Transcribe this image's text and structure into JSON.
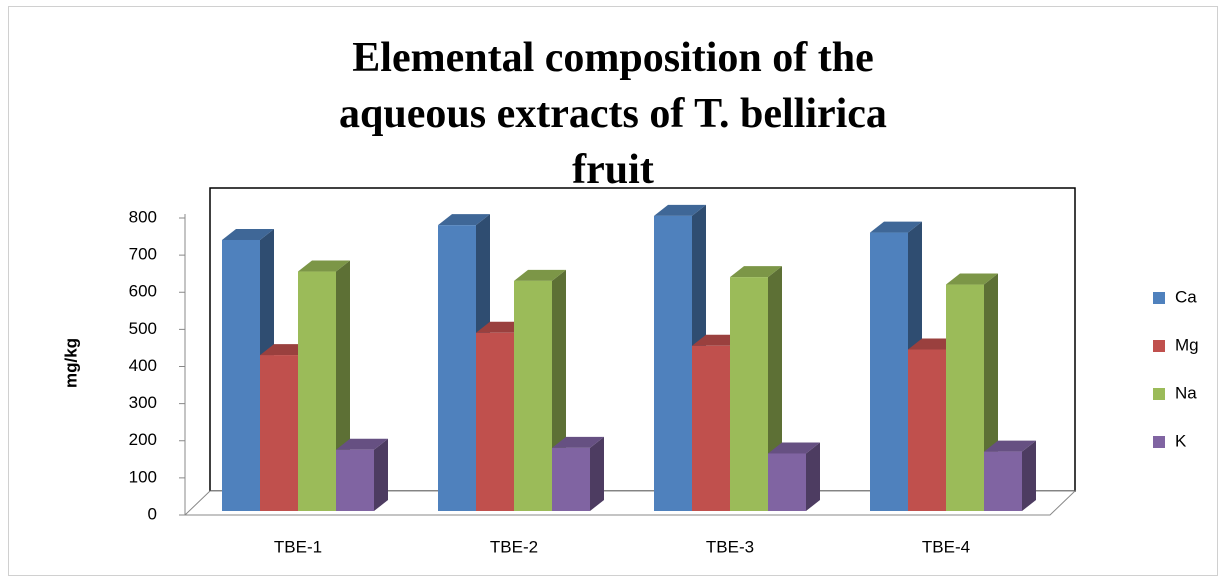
{
  "chart_data": {
    "type": "bar3d",
    "title": "Elemental composition of the aqueous extracts of T. bellirica fruit",
    "ylabel": "mg/kg",
    "categories": [
      "TBE-1",
      "TBE-2",
      "TBE-3",
      "TBE-4"
    ],
    "series": [
      {
        "name": "Ca",
        "color": "#4f81bd",
        "values": [
          730,
          770,
          795,
          750
        ]
      },
      {
        "name": "Mg",
        "color": "#c0504d",
        "values": [
          420,
          480,
          445,
          435
        ]
      },
      {
        "name": "Na",
        "color": "#9bbb59",
        "values": [
          645,
          620,
          630,
          610
        ]
      },
      {
        "name": "K",
        "color": "#8064a2",
        "values": [
          165,
          170,
          155,
          160
        ]
      }
    ],
    "ylim": [
      0,
      800
    ],
    "yticks": [
      0,
      100,
      200,
      300,
      400,
      500,
      600,
      700,
      800
    ],
    "legend": "right"
  }
}
